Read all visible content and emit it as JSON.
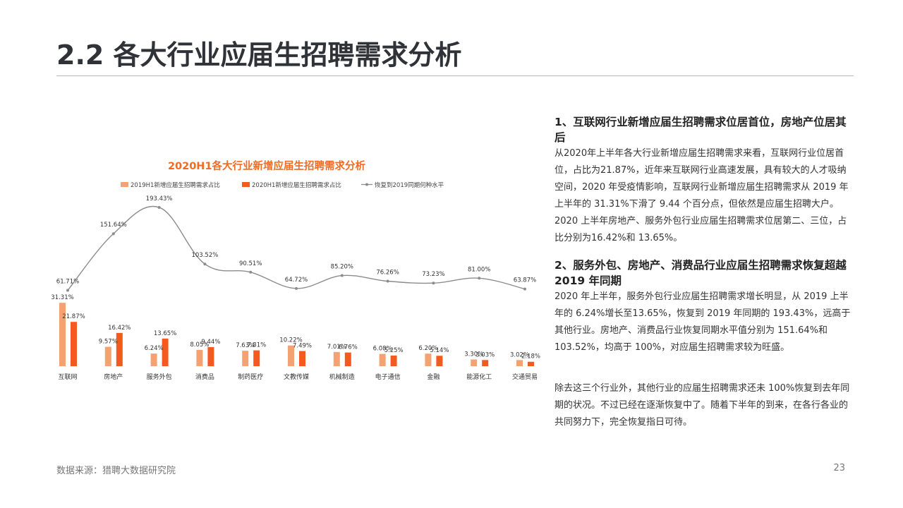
{
  "title": "2.2 各大行业应届生招聘需求分析",
  "chart_data": {
    "type": "bar",
    "title": "2020H1各大行业新增应届生招聘需求分析",
    "categories": [
      "互联网",
      "房地产",
      "服务外包",
      "消费品",
      "制药医疗",
      "文教传媒",
      "机械制造",
      "电子通信",
      "金融",
      "能源化工",
      "交通贸易"
    ],
    "series": [
      {
        "name": "2019H1新增应届生招聘需求占比",
        "type": "bar",
        "color": "#f5a273",
        "values": [
          31.31,
          9.57,
          6.24,
          8.05,
          7.63,
          10.22,
          7.01,
          6.08,
          6.2,
          3.3,
          3.02
        ],
        "labels": [
          "31.31%",
          "9.57%",
          "6.24%",
          "8.05%",
          "7.63%",
          "10.22%",
          "7.01%",
          "6.08%",
          "6.20%",
          "3.30%",
          "3.02%"
        ]
      },
      {
        "name": "2020H1新增应届生招聘需求占比",
        "type": "bar",
        "color": "#f45a1e",
        "values": [
          21.87,
          16.42,
          13.65,
          9.44,
          7.81,
          7.49,
          6.76,
          5.25,
          5.14,
          3.03,
          2.18
        ],
        "labels": [
          "21.87%",
          "16.42%",
          "13.65%",
          "9.44%",
          "7.81%",
          "7.49%",
          "6.76%",
          "5.25%",
          "5.14%",
          "3.03%",
          "2.18%"
        ]
      },
      {
        "name": "恢复到2019同期何种水平",
        "type": "line",
        "color": "#8c8c8c",
        "values": [
          61.71,
          151.64,
          193.43,
          103.52,
          90.51,
          64.72,
          85.2,
          76.26,
          73.23,
          81.0,
          63.87
        ],
        "labels": [
          "61.71%",
          "151.64%",
          "193.43%",
          "103.52%",
          "90.51%",
          "64.72%",
          "85.20%",
          "76.26%",
          "73.23%",
          "81.00%",
          "63.87%"
        ]
      }
    ],
    "legend_position": "top",
    "grid": false,
    "title_color": "#f26b21"
  },
  "sections": [
    {
      "heading": "1、互联网行业新增应届生招聘需求位居首位，房地产位居其后",
      "body": "从2020年上半年各大行业新增应届生招聘需求来看，互联网行业位居首位，占比为21.87%，近年来互联网行业高速发展，具有较大的人才吸纳空间，2020 年受疫情影响，互联网行业新增应届生招聘需求从 2019 年上半年的 31.31%下滑了 9.44 个百分点，但依然是应届生招聘大户。2020 上半年房地产、服务外包行业应届生招聘需求位居第二、三位，占比分别为16.42%和 13.65%。"
    },
    {
      "heading": "2、服务外包、房地产、消费品行业应届生招聘需求恢复超越 2019 年同期",
      "body": "2020 年上半年，服务外包行业应届生招聘需求增长明显，从 2019 上半年的 6.24%增长至13.65%，恢复到 2019 年同期的 193.43%，远高于其他行业。房地产、消费品行业恢复同期水平值分别为 151.64%和 103.52%，均高于 100%，对应届生招聘需求较为旺盛。"
    },
    {
      "heading": "",
      "body": "除去这三个行业外，其他行业的应届生招聘需求还未 100%恢复到去年同期的状况。不过已经在逐渐恢复中了。随着下半年的到来，在各行各业的共同努力下，完全恢复指日可待。"
    }
  ],
  "footer": {
    "source": "数据来源：猎聘大数据研究院",
    "page": "23"
  }
}
